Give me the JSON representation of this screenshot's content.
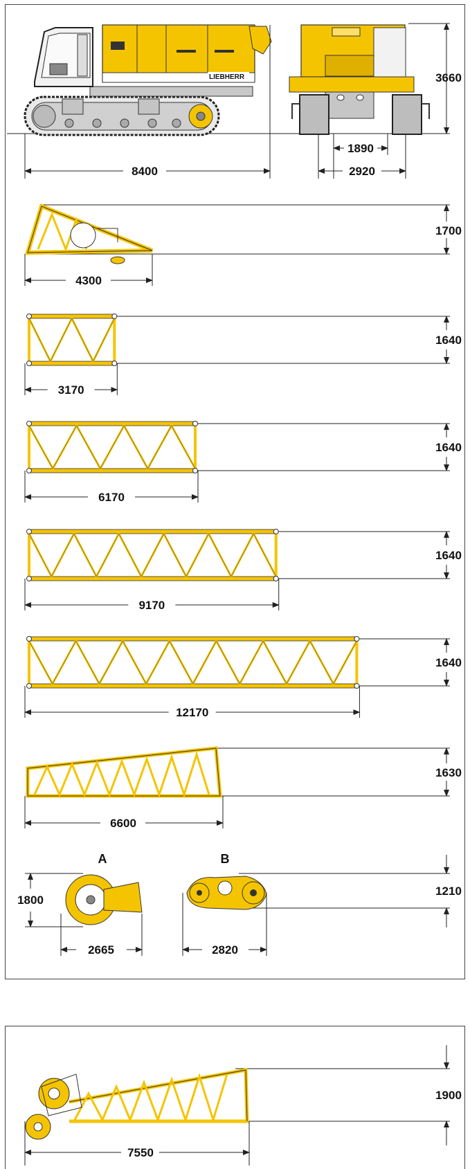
{
  "colors": {
    "steel": "#f5c400",
    "steel_dark": "#b38f00",
    "outline": "#2a2a2a",
    "grey": "#cfcfcf",
    "dim_line": "#222222"
  },
  "brand_logo_text": "LIEBHERR",
  "base_machine": {
    "length": "8400",
    "height": "3660",
    "track_gauge_inner": "1890",
    "track_width_outer": "2920"
  },
  "boom_foot": {
    "length": "4300",
    "height": "1700"
  },
  "intermediate_sections": [
    {
      "length": "3170",
      "height": "1640"
    },
    {
      "length": "6170",
      "height": "1640"
    },
    {
      "length": "9170",
      "height": "1640"
    },
    {
      "length": "12170",
      "height": "1640"
    }
  ],
  "boom_head": {
    "length": "6600",
    "height": "1630"
  },
  "part_a": {
    "label": "A",
    "height": "1800",
    "length": "2665"
  },
  "part_b": {
    "label": "B",
    "height": "1210",
    "length": "2820"
  },
  "jib_foot": {
    "length": "7550",
    "height": "1900"
  }
}
